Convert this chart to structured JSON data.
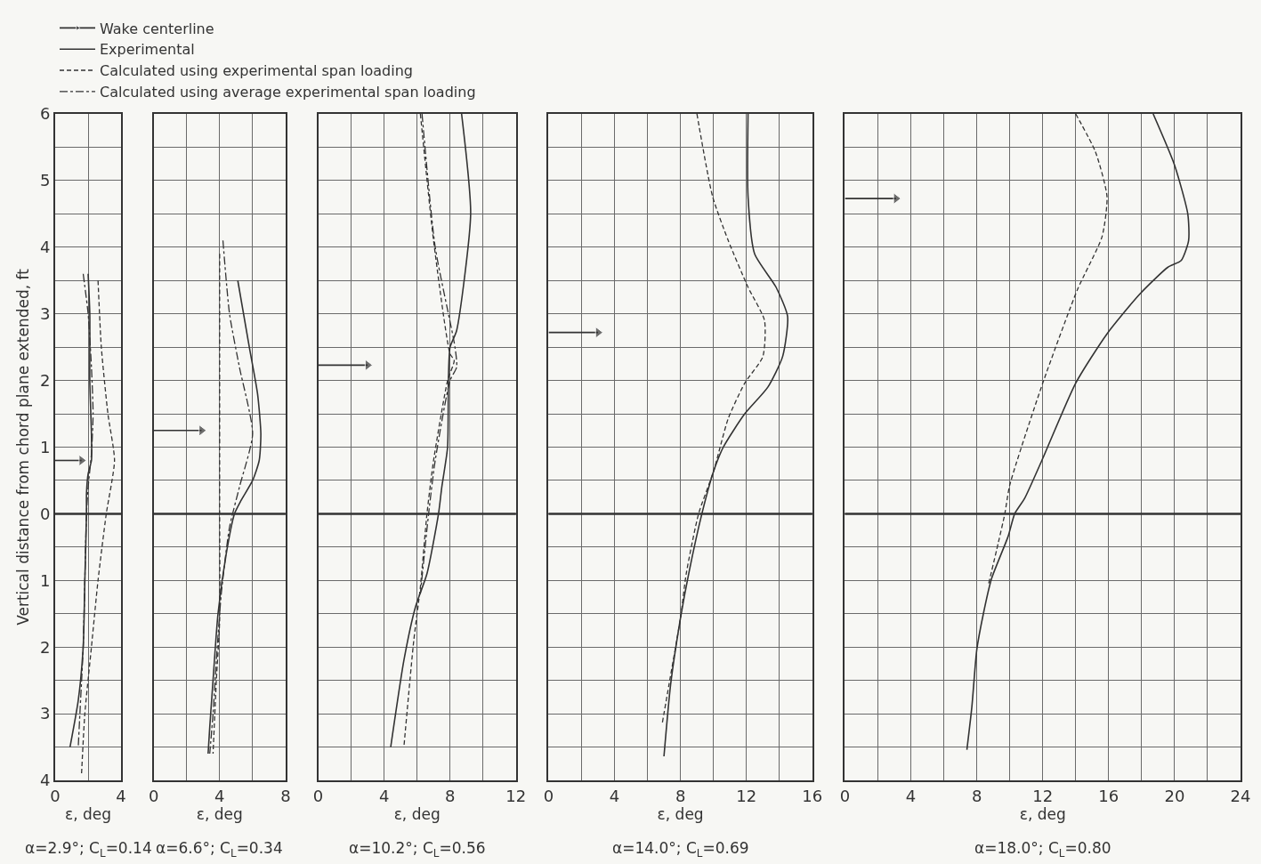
{
  "chart_data": [
    {
      "type": "line",
      "xlabel": "ε, deg",
      "ylabel": "Vertical distance from chord plane extended, ft",
      "annotations": [
        "α=2.9°; C$_{L}$=0.14"
      ],
      "xlim": [
        0,
        4
      ],
      "xticks": [
        0,
        4
      ],
      "ylim": [
        -4,
        6
      ],
      "yticks": [
        {
          "value": -4,
          "label": "4"
        },
        {
          "value": -3,
          "label": "3"
        },
        {
          "value": -2,
          "label": "2"
        },
        {
          "value": -1,
          "label": "1"
        },
        0,
        1,
        2,
        3,
        4,
        5,
        6
      ],
      "grid": true,
      "legend": "top right",
      "ref_lines": [
        {
          "axis": "y",
          "value": 0
        }
      ],
      "series": [
        {
          "name": "Wake centerline",
          "color": "#333333",
          "line_style": "solid",
          "marker": "triangle",
          "x": [
            0,
            1.6
          ],
          "values": [
            0.8,
            0.8
          ]
        },
        {
          "name": "Experimental",
          "color": "#333333",
          "line_style": "solid",
          "x": [
            2.0,
            2.1,
            2.1,
            2.2,
            2.2,
            2.0,
            1.9,
            1.9,
            1.8,
            1.7,
            1.4,
            0.9
          ],
          "values": [
            3.6,
            3.0,
            2.0,
            1.2,
            0.8,
            0.6,
            0.3,
            0,
            -1,
            -2,
            -2.8,
            -3.5
          ]
        },
        {
          "name": "Calculated using experimental span loading",
          "color": "#333333",
          "line_style": "dashed",
          "x": [
            2.6,
            2.8,
            3.2,
            3.6,
            3.1,
            2.6,
            2.2,
            1.8,
            1.6
          ],
          "values": [
            3.5,
            2.5,
            1.5,
            0.8,
            0,
            -1,
            -2,
            -3,
            -3.9
          ]
        },
        {
          "name": "Calculated using average experimental span loading",
          "color": "#333333",
          "line_style": "dotted",
          "x": [
            1.7,
            2.0,
            2.2,
            2.3,
            2.2,
            2.0,
            1.9,
            1.8,
            1.7,
            1.5,
            1.4
          ],
          "values": [
            3.6,
            3.0,
            2.2,
            1.5,
            0.9,
            0.4,
            0,
            -1,
            -2,
            -3,
            -3.5
          ]
        }
      ]
    },
    {
      "type": "line",
      "xlabel": "ε, deg",
      "annotations": [
        "α=6.6°; C$_{L}$=0.34"
      ],
      "xlim": [
        0,
        8
      ],
      "xticks": [
        0,
        4,
        8
      ],
      "ylim": [
        -4,
        6
      ],
      "yticks": [
        -4,
        -3,
        -2,
        -1,
        0,
        1,
        2,
        3,
        4,
        5,
        6
      ],
      "grid": true,
      "tick_labels": "x",
      "ref_lines": [
        {
          "axis": "y",
          "value": 0
        }
      ],
      "series": [
        {
          "color": "#333333",
          "line_style": "solid",
          "marker": "triangle",
          "x": [
            0,
            2.9
          ],
          "values": [
            1.25,
            1.25
          ]
        },
        {
          "color": "#333333",
          "line_style": "solid",
          "x": [
            5.1,
            5.8,
            6.3,
            6.5,
            6.4,
            6.0,
            5.3,
            4.9,
            4.4,
            3.9,
            3.6,
            3.4,
            3.3
          ],
          "values": [
            3.5,
            2.5,
            1.8,
            1.2,
            0.8,
            0.5,
            0.2,
            0,
            -0.6,
            -1.5,
            -2.5,
            -3.2,
            -3.6
          ]
        },
        {
          "color": "#333333",
          "line_style": "dashed",
          "x": [
            4.0,
            4.0,
            4.0,
            4.0,
            4.0,
            3.8,
            3.6
          ],
          "values": [
            3.9,
            2.5,
            1.0,
            0,
            -1.6,
            -2.5,
            -3.6
          ]
        },
        {
          "color": "#333333",
          "line_style": "dotted",
          "x": [
            4.2,
            4.6,
            5.2,
            6.0,
            5.2,
            4.6,
            4.1,
            3.8,
            3.6,
            3.4
          ],
          "values": [
            4.1,
            3.0,
            2.2,
            1.2,
            0.4,
            -0.2,
            -1.2,
            -2.2,
            -3.0,
            -3.6
          ]
        }
      ]
    },
    {
      "type": "line",
      "xlabel": "ε, deg",
      "annotations": [
        "α=10.2°; C$_{L}$=0.56"
      ],
      "xlim": [
        0,
        12
      ],
      "xticks": [
        0,
        4,
        8,
        12
      ],
      "ylim": [
        -4,
        6
      ],
      "yticks": [
        -4,
        -3,
        -2,
        -1,
        0,
        1,
        2,
        3,
        4,
        5,
        6
      ],
      "grid": true,
      "tick_labels": "x",
      "ref_lines": [
        {
          "axis": "y",
          "value": 0
        }
      ],
      "series": [
        {
          "color": "#333333",
          "line_style": "solid",
          "marker": "triangle",
          "x": [
            0,
            3.0
          ],
          "values": [
            2.23,
            2.23
          ]
        },
        {
          "color": "#333333",
          "line_style": "solid",
          "x": [
            8.7,
            9.25,
            8.4,
            8.0,
            7.9,
            7.85,
            7.5,
            7.3,
            6.6,
            5.9,
            5.2,
            4.4
          ],
          "values": [
            6,
            4.5,
            2.75,
            2.5,
            2.0,
            1.0,
            0.4,
            0,
            -0.9,
            -1.4,
            -2.2,
            -3.5
          ]
        },
        {
          "color": "#333333",
          "line_style": "dashed",
          "x": [
            6.2,
            7.0,
            8.0,
            8.25,
            7.85,
            7.0,
            6.6,
            6.2,
            5.8,
            5.2
          ],
          "values": [
            6,
            4.1,
            2.4,
            2.3,
            2.0,
            0.8,
            0,
            -1.1,
            -1.9,
            -3.5
          ]
        },
        {
          "color": "#333333",
          "line_style": "dotted",
          "x": [
            6.3,
            7.1,
            8.3,
            8.4,
            8.0,
            7.1,
            6.7,
            6.2
          ],
          "values": [
            6,
            4.0,
            2.5,
            2.2,
            2.0,
            0.8,
            0,
            -1.2
          ]
        }
      ]
    },
    {
      "type": "line",
      "xlabel": "ε, deg",
      "annotations": [
        "α=14.0°; C$_{L}$=0.69"
      ],
      "xlim": [
        0,
        16
      ],
      "xticks": [
        0,
        4,
        8,
        12,
        16
      ],
      "ylim": [
        -4,
        6
      ],
      "yticks": [
        -4,
        -3,
        -2,
        -1,
        0,
        1,
        2,
        3,
        4,
        5,
        6
      ],
      "grid": true,
      "tick_labels": "x",
      "ref_lines": [
        {
          "axis": "y",
          "value": 0
        }
      ],
      "series": [
        {
          "color": "#333333",
          "line_style": "solid",
          "marker": "triangle",
          "x": [
            0,
            3.0
          ],
          "values": [
            2.72,
            2.72
          ]
        },
        {
          "color": "#333333",
          "line_style": "solid",
          "x": [
            12.1,
            12.1,
            12.5,
            13.8,
            14.5,
            14.2,
            13.3,
            11.9,
            10.6,
            10.0,
            9.3,
            8.5,
            8.0,
            7.4,
            7.0
          ],
          "values": [
            6,
            4.76,
            3.9,
            3.4,
            2.96,
            2.36,
            1.9,
            1.5,
            1.0,
            0.63,
            0,
            -0.9,
            -1.57,
            -2.57,
            -3.64
          ]
        },
        {
          "color": "#333333",
          "line_style": "dashed",
          "x": [
            9.0,
            9.95,
            10.9,
            12.1,
            13.1,
            13.0,
            11.9,
            10.9,
            10.0,
            9.1,
            8.35,
            8.0,
            7.3,
            6.9
          ],
          "values": [
            6,
            4.76,
            4.1,
            3.4,
            2.9,
            2.36,
            1.96,
            1.43,
            0.63,
            0,
            -0.9,
            -1.57,
            -2.57,
            -3.14
          ]
        }
      ]
    },
    {
      "type": "line",
      "xlabel": "ε, deg",
      "annotations": [
        "α=18.0°; C$_{L}$=0.80"
      ],
      "xlim": [
        0,
        24
      ],
      "xticks": [
        0,
        4,
        8,
        12,
        16,
        20,
        24
      ],
      "ylim": [
        -4,
        6
      ],
      "yticks": [
        -4,
        -3,
        -2,
        -1,
        0,
        1,
        2,
        3,
        4,
        5,
        6
      ],
      "grid": true,
      "tick_labels": "x",
      "ref_lines": [
        {
          "axis": "y",
          "value": 0
        }
      ],
      "series": [
        {
          "color": "#333333",
          "line_style": "solid",
          "marker": "triangle",
          "x": [
            0,
            3.1
          ],
          "values": [
            4.73,
            4.73
          ]
        },
        {
          "color": "#333333",
          "line_style": "solid",
          "x": [
            18.7,
            20.0,
            20.8,
            20.85,
            20.4,
            19.6,
            17.9,
            15.9,
            14.0,
            12.0,
            10.9,
            10.3,
            9.9,
            8.9,
            8.4,
            8.0,
            7.7,
            7.4
          ],
          "values": [
            6,
            5.23,
            4.5,
            4.1,
            3.8,
            3.7,
            3.3,
            2.7,
            1.96,
            0.83,
            0.23,
            0,
            -0.34,
            -0.97,
            -1.5,
            -2.04,
            -2.9,
            -3.54
          ]
        },
        {
          "color": "#333333",
          "line_style": "dashed",
          "x": [
            14.0,
            15.2,
            15.9,
            15.6,
            14.1,
            12.0,
            10.0,
            9.7,
            9.3,
            8.7
          ],
          "values": [
            6,
            5.43,
            4.76,
            4.16,
            3.36,
            1.96,
            0.43,
            0,
            -0.44,
            -1.07
          ]
        }
      ]
    }
  ]
}
